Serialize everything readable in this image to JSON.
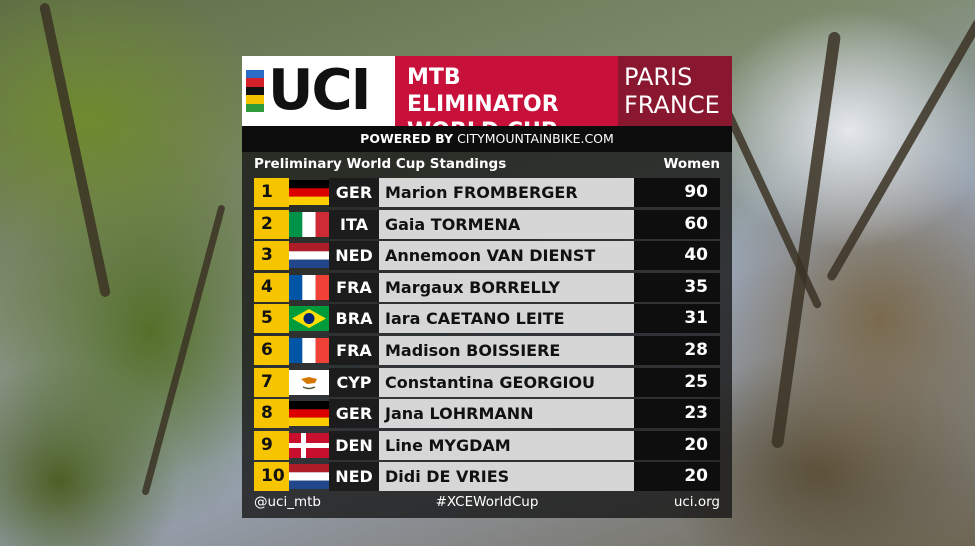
{
  "header": {
    "logo_text": "UCI",
    "event_line1": "MTB ELIMINATOR",
    "event_line2": "WORLD CUP",
    "location_line1": "PARIS",
    "location_line2": "FRANCE",
    "powered_prefix": "POWERED BY",
    "powered_site": "CITYMOUNTAINBIKE.COM"
  },
  "standings": {
    "title": "Preliminary World Cup Standings",
    "category": "Women",
    "rows": [
      {
        "rank": "1",
        "nation": "GER",
        "flag": "germany-flag-icon",
        "name": "Marion FROMBERGER",
        "points": "90"
      },
      {
        "rank": "2",
        "nation": "ITA",
        "flag": "italy-flag-icon",
        "name": "Gaia TORMENA",
        "points": "60"
      },
      {
        "rank": "3",
        "nation": "NED",
        "flag": "netherlands-flag-icon",
        "name": "Annemoon VAN DIENST",
        "points": "40"
      },
      {
        "rank": "4",
        "nation": "FRA",
        "flag": "france-flag-icon",
        "name": "Margaux BORRELLY",
        "points": "35"
      },
      {
        "rank": "5",
        "nation": "BRA",
        "flag": "brazil-flag-icon",
        "name": "Iara CAETANO LEITE",
        "points": "31"
      },
      {
        "rank": "6",
        "nation": "FRA",
        "flag": "france-flag-icon",
        "name": "Madison BOISSIERE",
        "points": "28"
      },
      {
        "rank": "7",
        "nation": "CYP",
        "flag": "cyprus-flag-icon",
        "name": "Constantina GEORGIOU",
        "points": "25"
      },
      {
        "rank": "8",
        "nation": "GER",
        "flag": "germany-flag-icon",
        "name": "Jana LOHRMANN",
        "points": "23"
      },
      {
        "rank": "9",
        "nation": "DEN",
        "flag": "denmark-flag-icon",
        "name": "Line MYGDAM",
        "points": "20"
      },
      {
        "rank": "10",
        "nation": "NED",
        "flag": "netherlands-flag-icon",
        "name": "Didi DE VRIES",
        "points": "20"
      }
    ]
  },
  "footer": {
    "left": "@uci_mtb",
    "middle": "#XCEWorldCup",
    "right": "uci.org"
  },
  "colors": {
    "event_red": "#c8113a",
    "location_red": "#8a1730",
    "rank_yellow": "#f7c400",
    "name_grey": "#d6d6d6",
    "rainbow_stripes": [
      "#2a6cc6",
      "#d4202b",
      "#111111",
      "#f3c300",
      "#2f9b3b"
    ]
  }
}
